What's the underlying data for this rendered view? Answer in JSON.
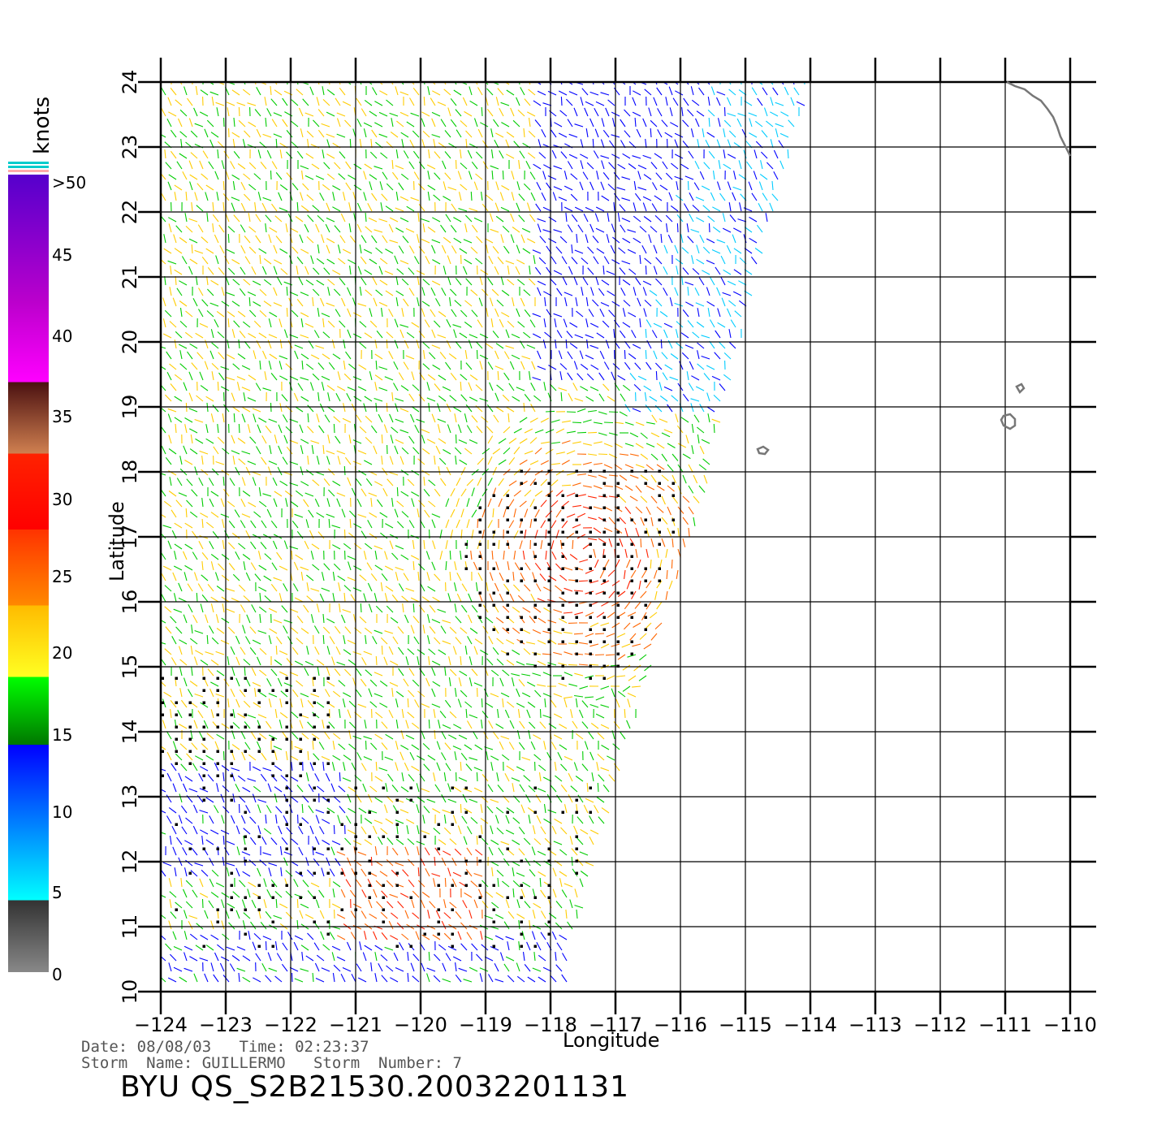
{
  "map": {
    "lon_ticks": [
      "-124",
      "-123",
      "-122",
      "-121",
      "-120",
      "-119",
      "-118",
      "-117",
      "-116",
      "-115",
      "-114",
      "-113",
      "-112",
      "-111",
      "-110"
    ],
    "lat_ticks": [
      "10",
      "11",
      "12",
      "13",
      "14",
      "15",
      "16",
      "17",
      "18",
      "19",
      "20",
      "21",
      "22",
      "23",
      "24"
    ],
    "xlabel": "Longitude",
    "ylabel": "Latitude",
    "lon_range": [
      -124,
      -110
    ],
    "lat_range": [
      10,
      24
    ],
    "coast_color": "#777777"
  },
  "colorbar": {
    "unit": "knots",
    "labels": [
      ">50",
      "45",
      "40",
      "35",
      "30",
      "25",
      "20",
      "15",
      "10",
      "5",
      "0"
    ],
    "colors": {
      "0-5": "#555555",
      "5-10": "#00ccff",
      "10-15": "#0000ff",
      "15-20": "#00cc00",
      "20-25": "#ffcc00",
      "25-30": "#ff6600",
      "30-35": "#ff2200",
      "35-40": "#7a3a20",
      "40-45": "#ff00ff",
      ">45": "#6600cc"
    }
  },
  "footer": {
    "date_line": "Date: 08/08/03   Time: 02:23:37",
    "storm_line": "Storm  Name: GUILLERMO   Storm  Number: 7",
    "file_id": "BYU  QS_S2B21530.20032201131"
  }
}
